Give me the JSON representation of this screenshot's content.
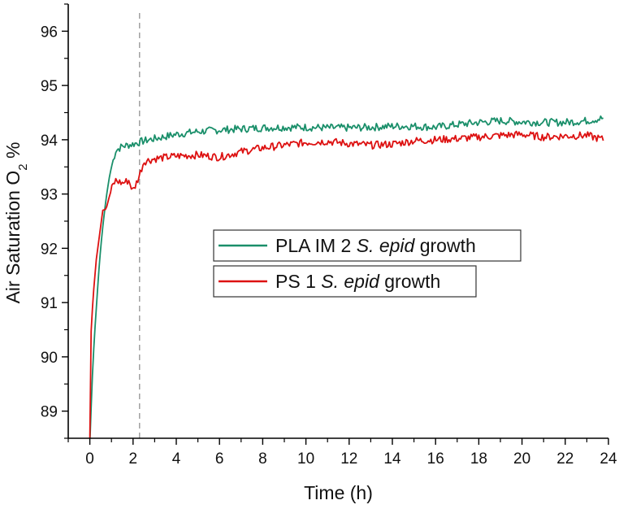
{
  "chart_data": {
    "type": "line",
    "xlabel": "Time (h)",
    "ylabel": {
      "prefix": "Air Saturation O",
      "subscript": "2",
      "suffix": " %"
    },
    "xlim": [
      -1,
      24
    ],
    "ylim": [
      88.5,
      96.5
    ],
    "xticks": [
      0,
      2,
      4,
      6,
      8,
      10,
      12,
      14,
      16,
      18,
      20,
      22,
      24
    ],
    "xtick_labels": [
      "0",
      "2",
      "4",
      "6",
      "8",
      "10",
      "12",
      "14",
      "16",
      "18",
      "20",
      "22",
      "24"
    ],
    "yticks": [
      89,
      90,
      91,
      92,
      93,
      94,
      95,
      96
    ],
    "ytick_labels": [
      "89",
      "90",
      "91",
      "92",
      "93",
      "94",
      "95",
      "96"
    ],
    "reference_line_x": 2.3,
    "series": [
      {
        "name": "PLA IM 2 S. epid growth",
        "legend": {
          "prefix": "PLA IM 2 ",
          "italic": "S. epid",
          "suffix": " growth"
        },
        "color": "#1a8f6a",
        "x": [
          0,
          0.1,
          0.2,
          0.3,
          0.4,
          0.5,
          0.6,
          0.7,
          0.8,
          0.9,
          1.0,
          1.2,
          1.5,
          2.0,
          2.5,
          3,
          4,
          5,
          6,
          7,
          8,
          9,
          10,
          11,
          12,
          13,
          14,
          15,
          16,
          17,
          18,
          19,
          20,
          21,
          22,
          23,
          23.8
        ],
        "y": [
          88.4,
          89.5,
          90.3,
          90.9,
          91.5,
          92.0,
          92.4,
          92.75,
          93.05,
          93.3,
          93.5,
          93.8,
          93.88,
          93.92,
          93.98,
          94.02,
          94.1,
          94.15,
          94.18,
          94.2,
          94.22,
          94.23,
          94.23,
          94.22,
          94.22,
          94.23,
          94.25,
          94.25,
          94.23,
          94.28,
          94.32,
          94.35,
          94.33,
          94.32,
          94.32,
          94.35,
          94.4
        ]
      },
      {
        "name": "PS 1 S. epid growth",
        "legend": {
          "prefix": "PS 1 ",
          "italic": "S. epid",
          "suffix": " growth"
        },
        "color": "#dd1111",
        "x": [
          0,
          0.05,
          0.15,
          0.3,
          0.5,
          0.6,
          0.75,
          0.9,
          1.05,
          1.2,
          1.5,
          1.8,
          2.0,
          2.3,
          2.5,
          3,
          4,
          5,
          6,
          7,
          8,
          9,
          10,
          11,
          12,
          13,
          14,
          15,
          16,
          17,
          18,
          19,
          20,
          21,
          22,
          23,
          23.8
        ],
        "y": [
          88.5,
          90.4,
          91.1,
          91.8,
          92.4,
          92.7,
          92.72,
          92.95,
          93.15,
          93.25,
          93.2,
          93.25,
          93.05,
          93.35,
          93.6,
          93.65,
          93.7,
          93.72,
          93.68,
          93.78,
          93.85,
          93.9,
          93.95,
          93.97,
          93.93,
          93.9,
          93.92,
          93.98,
          94.0,
          94.02,
          94.05,
          94.08,
          94.1,
          94.05,
          94.07,
          94.08,
          94.0
        ]
      }
    ]
  }
}
